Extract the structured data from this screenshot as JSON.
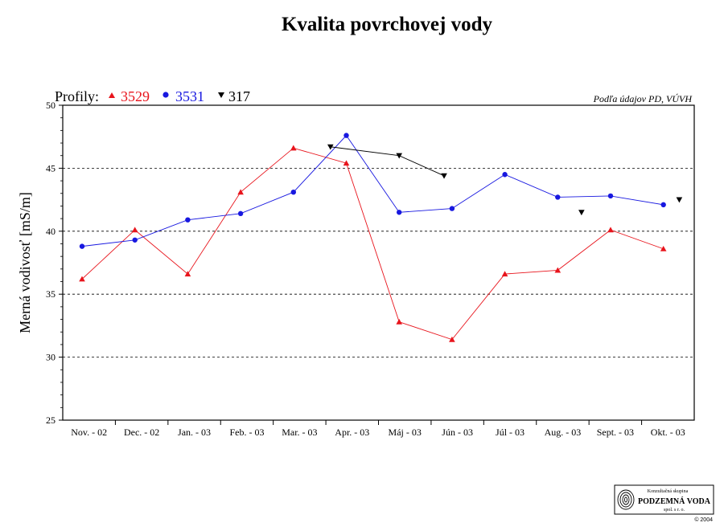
{
  "chart_data": {
    "type": "line",
    "title": "Kvalita povrchovej vody",
    "ylabel": "Merná vodivosť [mS/m]",
    "xlabel": "",
    "ylim": [
      25,
      50
    ],
    "yticks": [
      25,
      30,
      35,
      40,
      45,
      50
    ],
    "grid": "horizontal dashed at 30, 35, 40, 45",
    "categories": [
      "Nov. - 02",
      "Dec. - 02",
      "Jan. - 03",
      "Feb. - 03",
      "Mar. - 03",
      "Apr. - 03",
      "Máj - 03",
      "Jún - 03",
      "Júl - 03",
      "Aug. - 03",
      "Sept. - 03",
      "Okt. - 03"
    ],
    "series": [
      {
        "name": "3529",
        "marker": "triangle-up",
        "color": "#e8141c",
        "points": [
          {
            "x": 0.0,
            "y": 36.2
          },
          {
            "x": 1.0,
            "y": 40.1
          },
          {
            "x": 2.0,
            "y": 36.6
          },
          {
            "x": 3.0,
            "y": 43.1
          },
          {
            "x": 4.0,
            "y": 46.6
          },
          {
            "x": 5.0,
            "y": 45.4
          },
          {
            "x": 6.0,
            "y": 32.8
          },
          {
            "x": 7.0,
            "y": 31.4
          },
          {
            "x": 8.0,
            "y": 36.6
          },
          {
            "x": 9.0,
            "y": 36.9
          },
          {
            "x": 10.0,
            "y": 40.1
          },
          {
            "x": 11.0,
            "y": 38.6
          }
        ],
        "connected": true
      },
      {
        "name": "3531",
        "marker": "circle",
        "color": "#1818e0",
        "points": [
          {
            "x": 0.0,
            "y": 38.8
          },
          {
            "x": 1.0,
            "y": 39.3
          },
          {
            "x": 2.0,
            "y": 40.9
          },
          {
            "x": 3.0,
            "y": 41.4
          },
          {
            "x": 4.0,
            "y": 43.1
          },
          {
            "x": 5.0,
            "y": 47.6
          },
          {
            "x": 6.0,
            "y": 41.5
          },
          {
            "x": 7.0,
            "y": 41.8
          },
          {
            "x": 8.0,
            "y": 44.5
          },
          {
            "x": 9.0,
            "y": 42.7
          },
          {
            "x": 10.0,
            "y": 42.8
          },
          {
            "x": 11.0,
            "y": 42.1
          }
        ],
        "connected": true
      },
      {
        "name": "317",
        "marker": "triangle-down",
        "color": "#000000",
        "points": [
          {
            "x": 4.7,
            "y": 46.7
          },
          {
            "x": 6.0,
            "y": 46.0
          },
          {
            "x": 6.85,
            "y": 44.4
          }
        ],
        "connected": true
      },
      {
        "name": "317",
        "marker": "triangle-down",
        "color": "#000000",
        "points": [
          {
            "x": 9.45,
            "y": 41.5
          },
          {
            "x": 11.3,
            "y": 42.5
          }
        ],
        "connected": false
      }
    ]
  },
  "legend": {
    "prefix": "Profily:",
    "items": [
      {
        "label": "3529",
        "color": "#e8141c",
        "marker": "triangle-up"
      },
      {
        "label": "3531",
        "color": "#1818e0",
        "marker": "circle"
      },
      {
        "label": "317",
        "color": "#000000",
        "marker": "triangle-down"
      }
    ]
  },
  "source_note": "Podľa údajov PD, VÚVH",
  "logo": {
    "line1": "Konzultačná skupina",
    "line2": "PODZEMNÁ VODA",
    "line3": "spol. s r. o.",
    "copyright": "© 2004"
  }
}
